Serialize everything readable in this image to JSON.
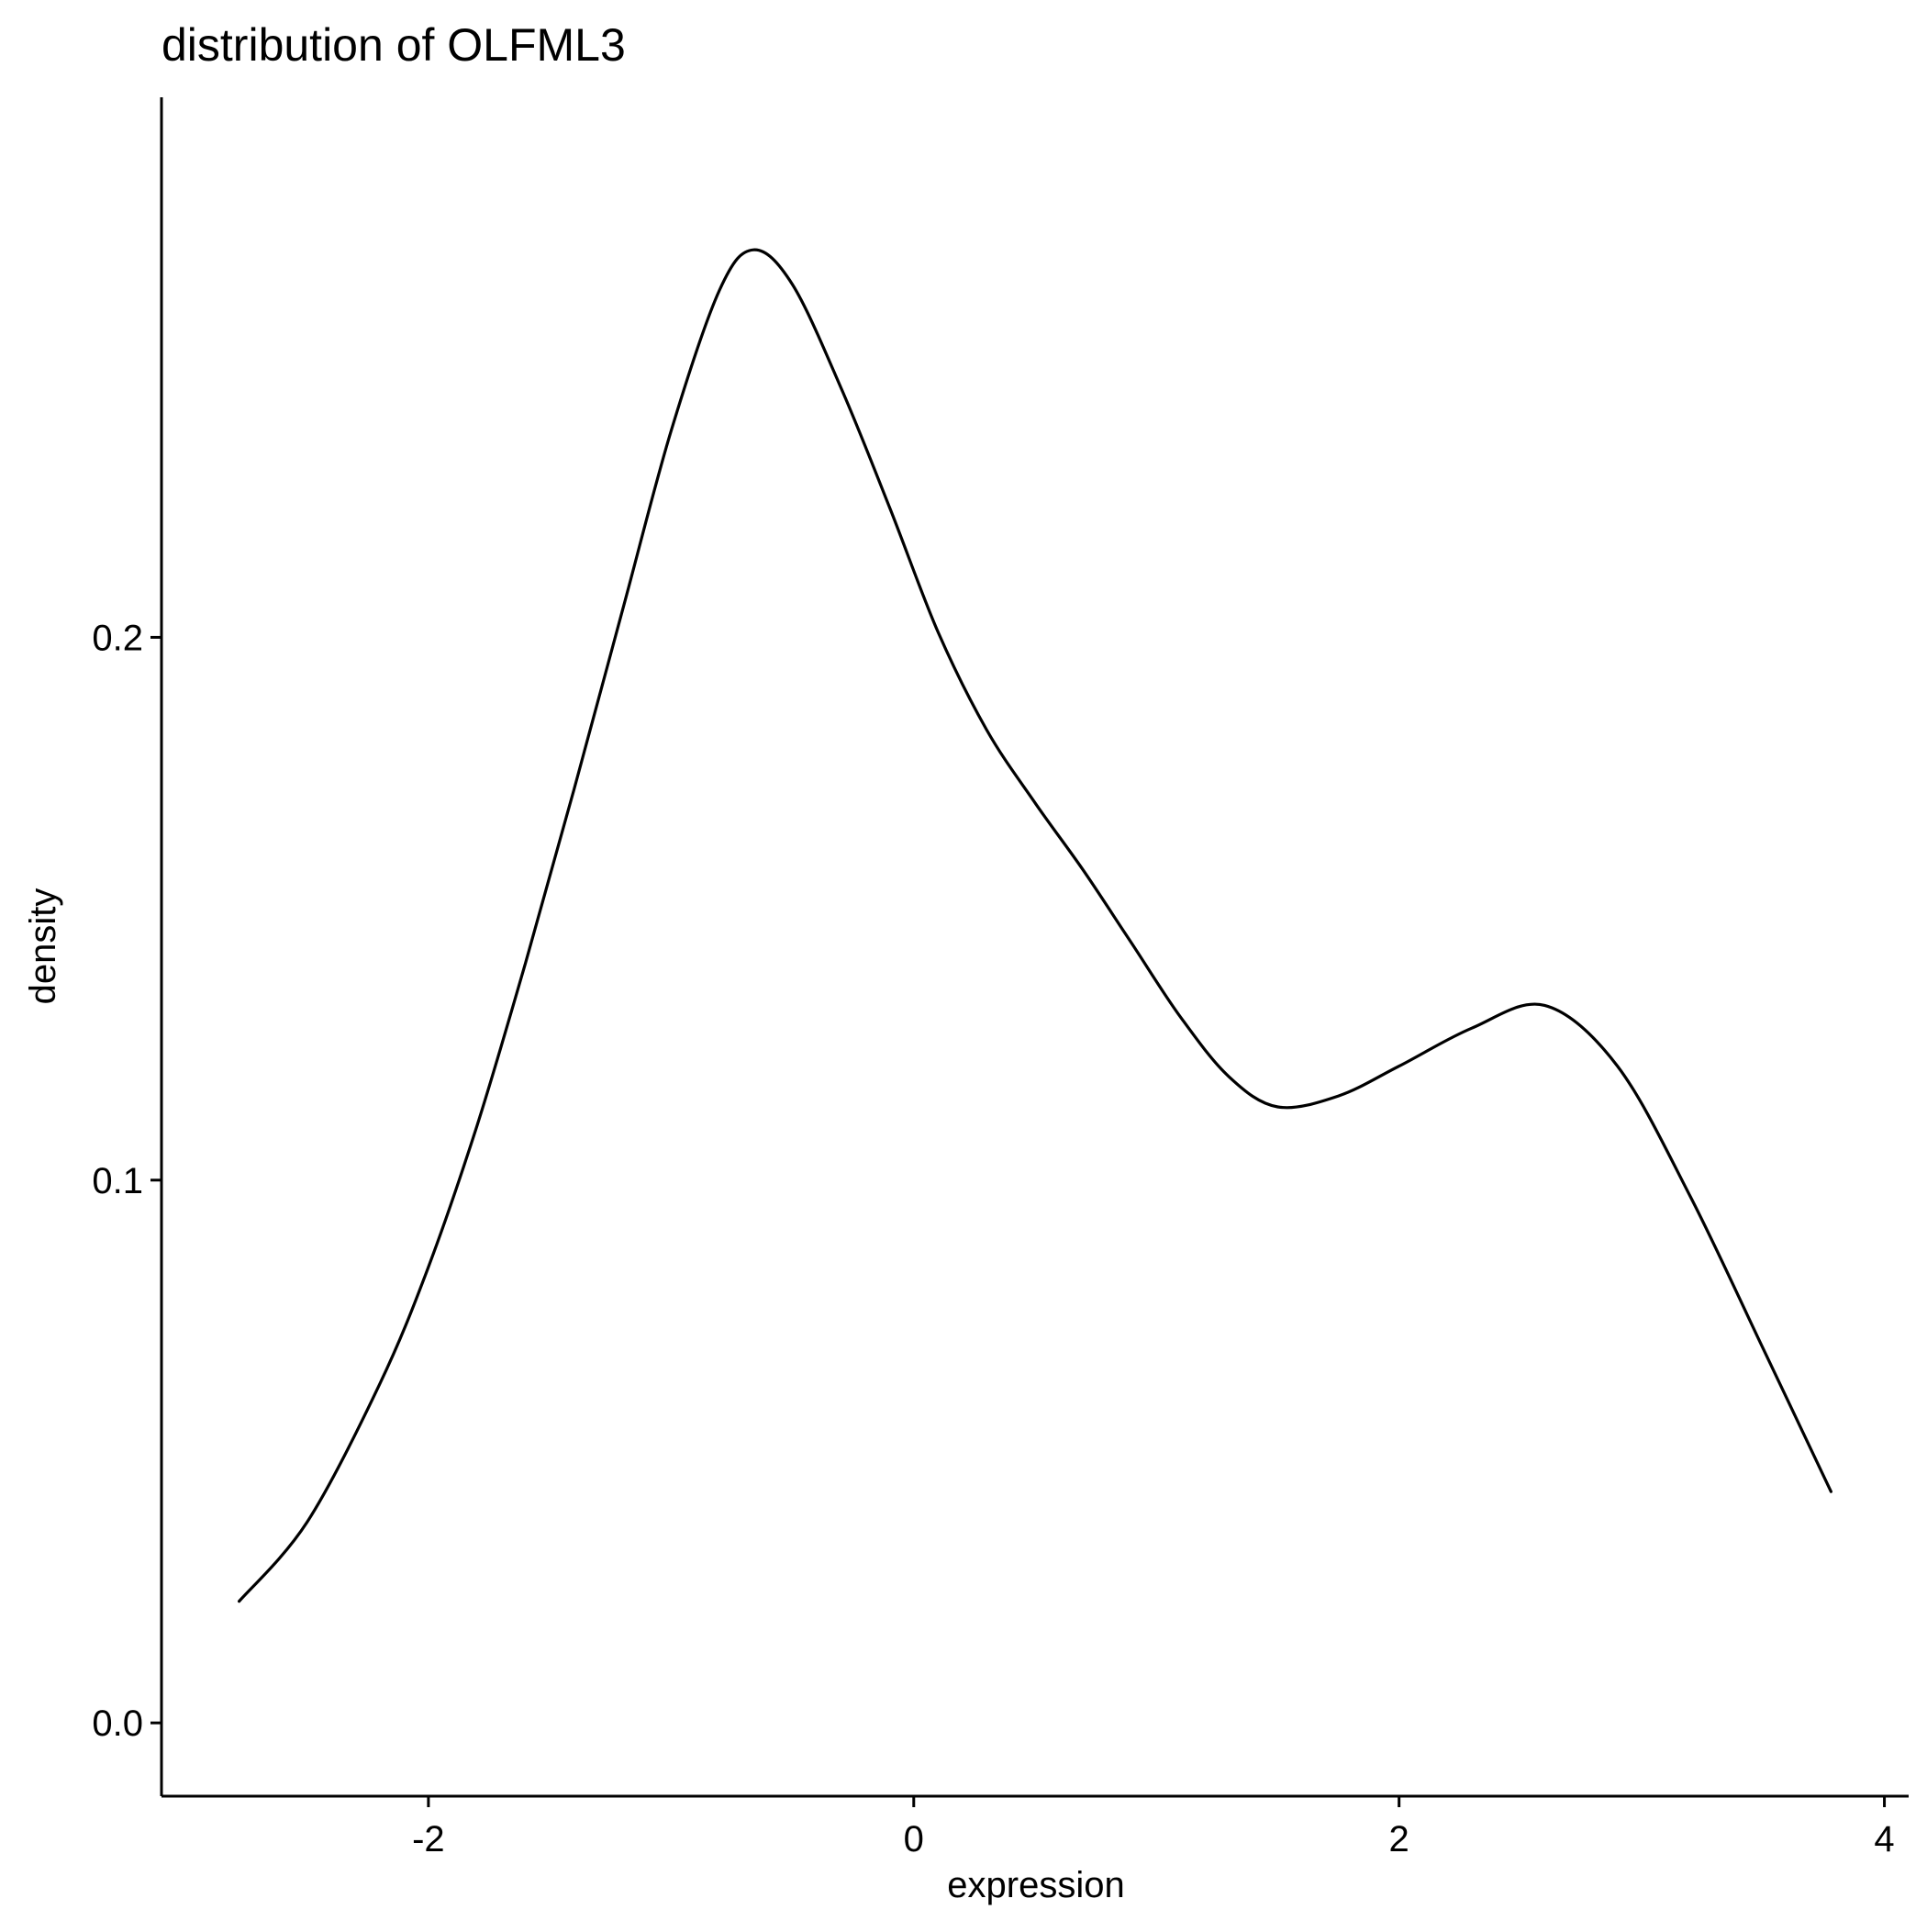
{
  "chart_data": {
    "type": "line",
    "title": "distribution of OLFML3",
    "xlabel": "expression",
    "ylabel": "density",
    "xlim": [
      -3.1,
      4.1
    ],
    "ylim": [
      -0.0135,
      0.2995
    ],
    "x_ticks": [
      -2,
      0,
      2,
      4
    ],
    "x_tick_labels": [
      "-2",
      "0",
      "2",
      "4"
    ],
    "y_ticks": [
      0.0,
      0.1,
      0.2
    ],
    "y_tick_labels": [
      "0.0",
      "0.1",
      "0.2"
    ],
    "grid": false,
    "legend": "none",
    "colors": {
      "line": "#000000",
      "axis": "#000000",
      "background": "#ffffff"
    },
    "series": [
      {
        "x": [
          -2.78,
          -2.5,
          -2.2,
          -2.0,
          -1.8,
          -1.6,
          -1.4,
          -1.2,
          -1.0,
          -0.8,
          -0.66,
          -0.5,
          -0.3,
          -0.1,
          0.1,
          0.3,
          0.5,
          0.7,
          0.9,
          1.1,
          1.3,
          1.5,
          1.75,
          2.0,
          2.3,
          2.6,
          2.9,
          3.2,
          3.5,
          3.78
        ],
        "y": [
          0.0224,
          0.037,
          0.0625,
          0.084,
          0.11,
          0.14,
          0.172,
          0.205,
          0.238,
          0.264,
          0.2714,
          0.265,
          0.246,
          0.224,
          0.201,
          0.183,
          0.1695,
          0.157,
          0.1435,
          0.13,
          0.119,
          0.1135,
          0.1155,
          0.121,
          0.128,
          0.1322,
          0.121,
          0.097,
          0.069,
          0.0426
        ]
      }
    ]
  }
}
